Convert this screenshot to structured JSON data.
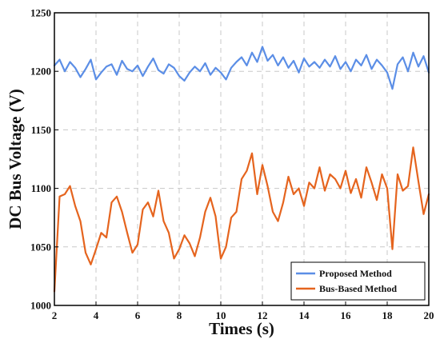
{
  "chart_data": {
    "type": "line",
    "xlabel": "Times (s)",
    "ylabel": "DC Bus Voltage (V)",
    "xlim": [
      2,
      20
    ],
    "ylim": [
      1000,
      1250
    ],
    "x_ticks": [
      2,
      4,
      6,
      8,
      10,
      12,
      14,
      16,
      18,
      20
    ],
    "y_ticks": [
      1000,
      1050,
      1100,
      1150,
      1200,
      1250
    ],
    "grid": true,
    "legend_position": "bottom-right",
    "series": [
      {
        "name": "Proposed Method",
        "color": "#5b8ee6",
        "x": [
          2.0,
          2.25,
          2.5,
          2.75,
          3.0,
          3.25,
          3.5,
          3.75,
          4.0,
          4.25,
          4.5,
          4.75,
          5.0,
          5.25,
          5.5,
          5.75,
          6.0,
          6.25,
          6.5,
          6.75,
          7.0,
          7.25,
          7.5,
          7.75,
          8.0,
          8.25,
          8.5,
          8.75,
          9.0,
          9.25,
          9.5,
          9.75,
          10.0,
          10.25,
          10.5,
          10.75,
          11.0,
          11.25,
          11.5,
          11.75,
          12.0,
          12.25,
          12.5,
          12.75,
          13.0,
          13.25,
          13.5,
          13.75,
          14.0,
          14.25,
          14.5,
          14.75,
          15.0,
          15.25,
          15.5,
          15.75,
          16.0,
          16.25,
          16.5,
          16.75,
          17.0,
          17.25,
          17.5,
          17.75,
          18.0,
          18.25,
          18.5,
          18.75,
          19.0,
          19.25,
          19.5,
          19.75,
          20.0
        ],
        "y": [
          1205,
          1210,
          1200,
          1208,
          1203,
          1195,
          1202,
          1210,
          1193,
          1199,
          1204,
          1206,
          1197,
          1209,
          1202,
          1200,
          1205,
          1196,
          1204,
          1211,
          1201,
          1198,
          1206,
          1203,
          1196,
          1192,
          1199,
          1204,
          1200,
          1207,
          1197,
          1203,
          1199,
          1193,
          1203,
          1208,
          1212,
          1205,
          1216,
          1208,
          1221,
          1209,
          1214,
          1205,
          1212,
          1203,
          1209,
          1199,
          1211,
          1204,
          1208,
          1203,
          1210,
          1204,
          1213,
          1202,
          1208,
          1200,
          1210,
          1205,
          1214,
          1202,
          1210,
          1205,
          1199,
          1185,
          1206,
          1212,
          1200,
          1216,
          1204,
          1213,
          1199
        ]
      },
      {
        "name": "Bus-Based Method",
        "color": "#e5641e",
        "x": [
          2.0,
          2.25,
          2.5,
          2.75,
          3.0,
          3.25,
          3.5,
          3.75,
          4.0,
          4.25,
          4.5,
          4.75,
          5.0,
          5.25,
          5.5,
          5.75,
          6.0,
          6.25,
          6.5,
          6.75,
          7.0,
          7.25,
          7.5,
          7.75,
          8.0,
          8.25,
          8.5,
          8.75,
          9.0,
          9.25,
          9.5,
          9.75,
          10.0,
          10.25,
          10.5,
          10.75,
          11.0,
          11.25,
          11.5,
          11.75,
          12.0,
          12.25,
          12.5,
          12.75,
          13.0,
          13.25,
          13.5,
          13.75,
          14.0,
          14.25,
          14.5,
          14.75,
          15.0,
          15.25,
          15.5,
          15.75,
          16.0,
          16.25,
          16.5,
          16.75,
          17.0,
          17.25,
          17.5,
          17.75,
          18.0,
          18.25,
          18.5,
          18.75,
          19.0,
          19.25,
          19.5,
          19.75,
          20.0
        ],
        "y": [
          1012,
          1093,
          1095,
          1102,
          1085,
          1072,
          1045,
          1035,
          1048,
          1062,
          1058,
          1088,
          1093,
          1080,
          1062,
          1045,
          1052,
          1082,
          1088,
          1076,
          1098,
          1072,
          1062,
          1040,
          1048,
          1060,
          1053,
          1042,
          1058,
          1080,
          1092,
          1076,
          1040,
          1050,
          1075,
          1080,
          1108,
          1115,
          1130,
          1095,
          1120,
          1102,
          1080,
          1072,
          1088,
          1110,
          1095,
          1100,
          1085,
          1105,
          1100,
          1118,
          1098,
          1112,
          1108,
          1100,
          1115,
          1096,
          1108,
          1092,
          1118,
          1105,
          1090,
          1112,
          1100,
          1048,
          1112,
          1098,
          1102,
          1135,
          1106,
          1078,
          1095
        ]
      }
    ]
  }
}
